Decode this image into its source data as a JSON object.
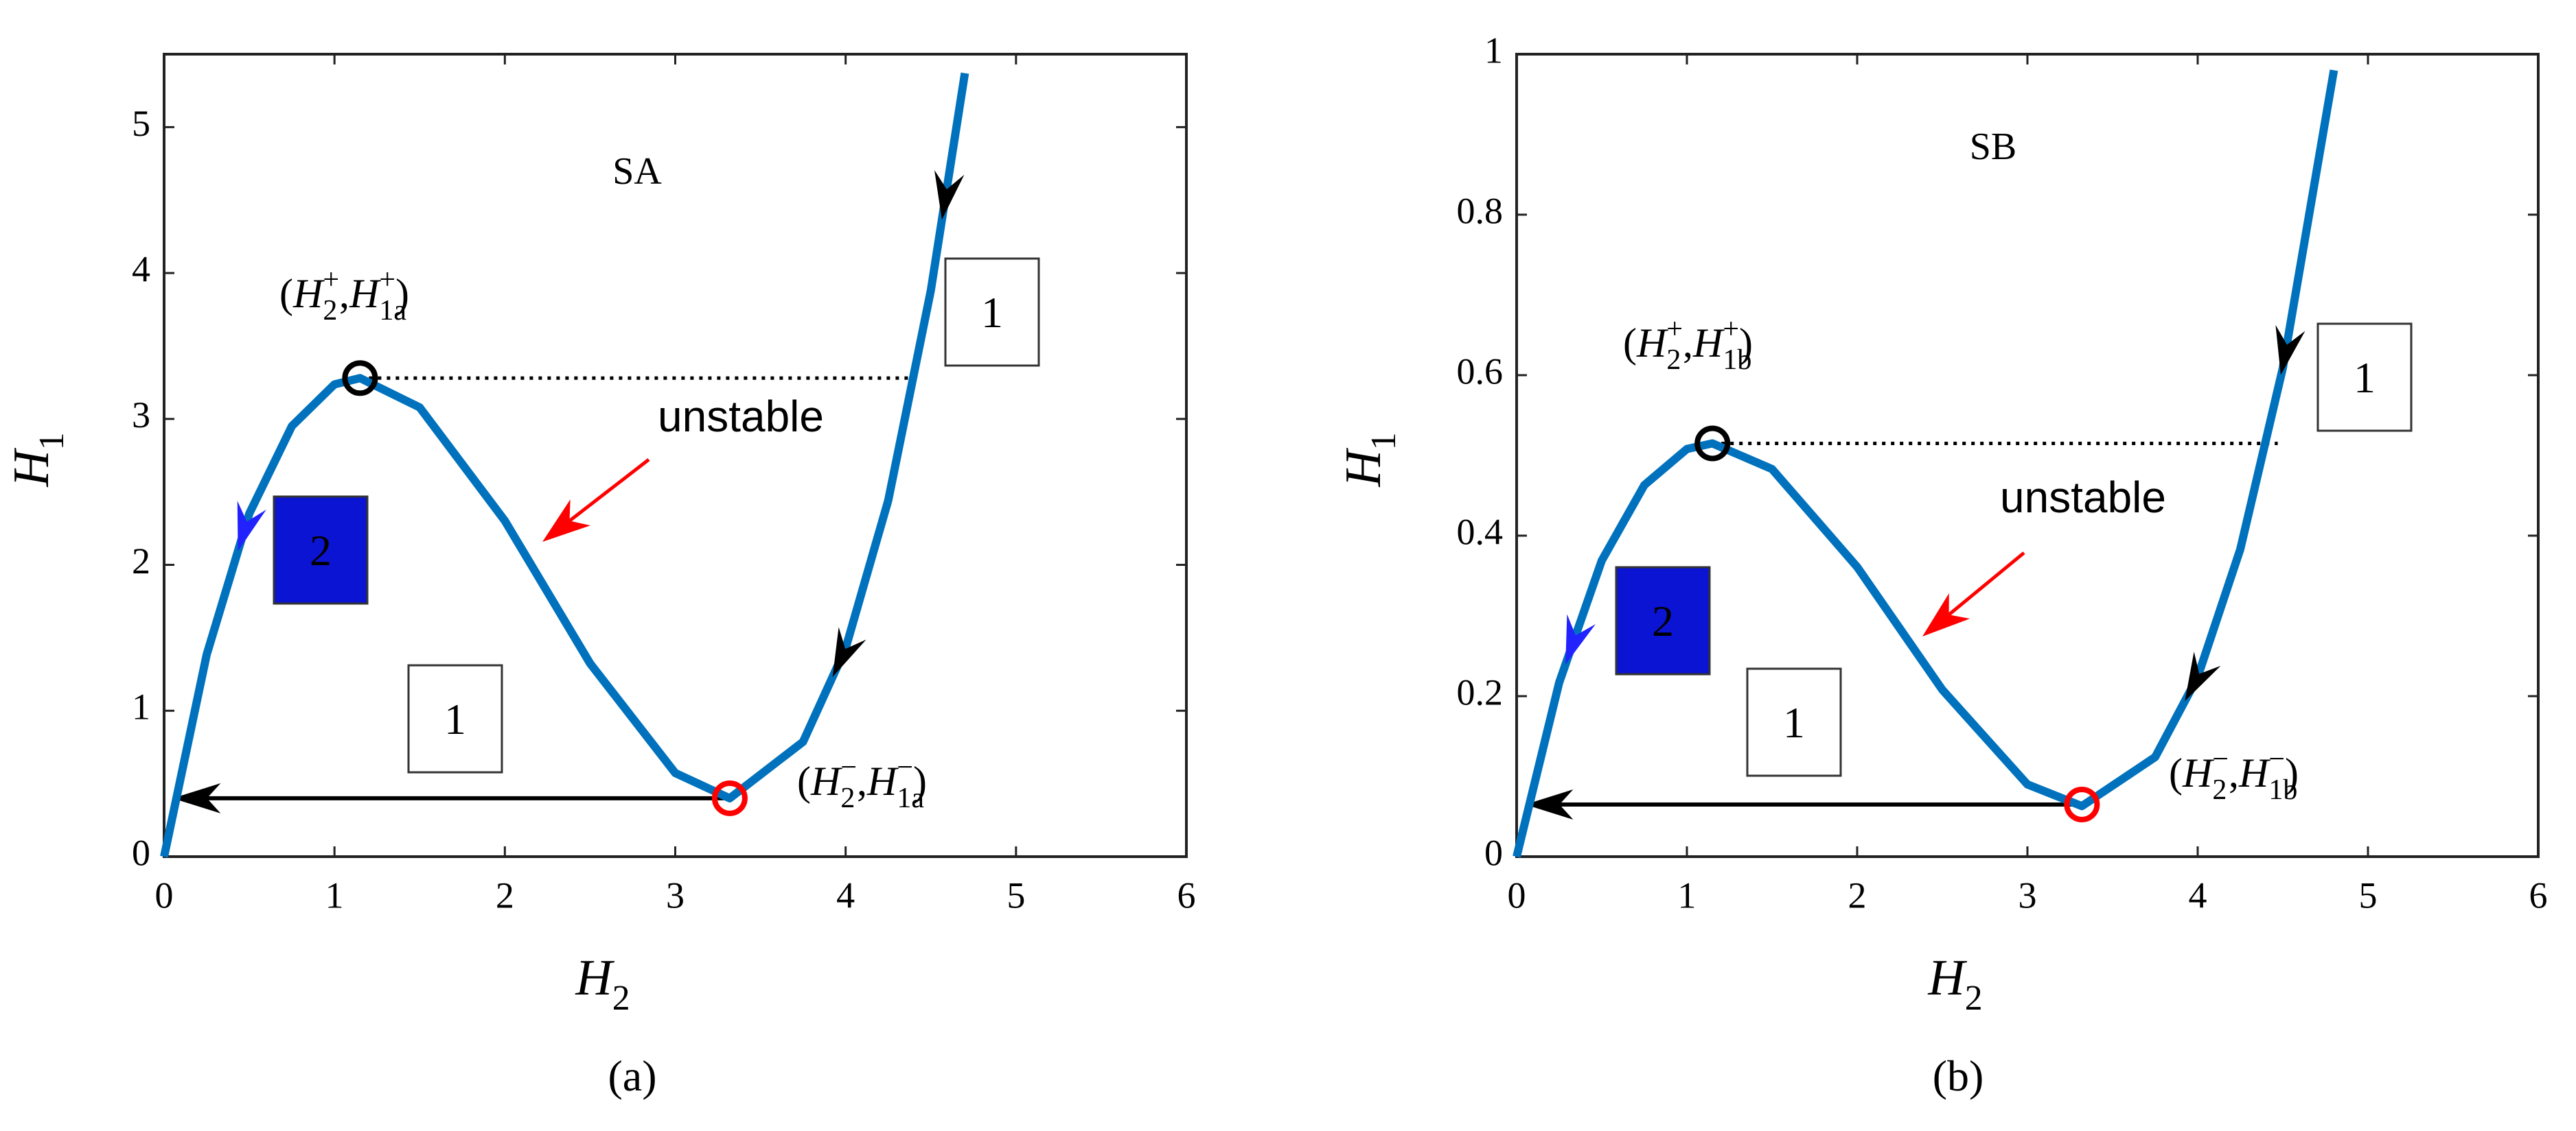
{
  "chart_data": [
    {
      "type": "line",
      "x": [
        0,
        0.25,
        0.5,
        0.75,
        1.0,
        1.15,
        1.5,
        2.0,
        2.5,
        3.0,
        3.32,
        3.75,
        4.0,
        4.25,
        4.5,
        4.7
      ],
      "series": [
        {
          "color": "#0072bd",
          "values": [
            0,
            1.385,
            2.351,
            2.951,
            3.237,
            3.28,
            3.079,
            2.302,
            1.325,
            0.573,
            0.4,
            0.787,
            1.428,
            2.441,
            3.88,
            5.37
          ]
        }
      ],
      "xlim": [
        0,
        6
      ],
      "xticks": [
        0,
        1,
        2,
        3,
        4,
        5,
        6
      ],
      "ylim": [
        0,
        5.5
      ],
      "yticks": [
        0,
        1,
        2,
        3,
        4,
        5
      ],
      "x_label": {
        "text": "H",
        "sub": "2"
      },
      "y_label": {
        "text": "H",
        "sub": "1"
      },
      "points": [
        {
          "x": 1.15,
          "y": 3.28,
          "color": "#000000"
        },
        {
          "x": 3.32,
          "y": 0.4,
          "color": "#ff0000"
        }
      ],
      "point_labels": [
        [
          {
            "text": "("
          },
          {
            "text": "H",
            "sub": "2",
            "sup": "+"
          },
          {
            "text": ","
          },
          {
            "text": "H",
            "sub": "1a",
            "sup": "+"
          },
          {
            "text": ")"
          }
        ],
        [
          {
            "text": "("
          },
          {
            "text": "H",
            "sub": "2",
            "sup": "−"
          },
          {
            "text": ","
          },
          {
            "text": "H",
            "sub": "1a",
            "sup": "−"
          },
          {
            "text": ")"
          }
        ]
      ],
      "region_label": "SA",
      "note": "unstable",
      "boxes": [
        {
          "text": "1",
          "color": "#ffffff"
        },
        {
          "text": "2",
          "color": "#0a14d2"
        },
        {
          "text": "1",
          "color": "#ffffff"
        }
      ],
      "caption": "(a)"
    },
    {
      "type": "line",
      "x": [
        0,
        0.25,
        0.5,
        0.75,
        1.0,
        1.15,
        1.5,
        2.0,
        2.5,
        3.0,
        3.32,
        3.75,
        4.0,
        4.25,
        4.5,
        4.8
      ],
      "series": [
        {
          "color": "#0072bd",
          "values": [
            0,
            0.217,
            0.369,
            0.463,
            0.508,
            0.515,
            0.483,
            0.361,
            0.208,
            0.09,
            0.063,
            0.124,
            0.224,
            0.383,
            0.609,
            0.98
          ]
        }
      ],
      "xlim": [
        0,
        6
      ],
      "xticks": [
        0,
        1,
        2,
        3,
        4,
        5,
        6
      ],
      "ylim": [
        0,
        1
      ],
      "yticks": [
        0,
        0.2,
        0.4,
        0.6,
        0.8,
        1
      ],
      "x_label": {
        "text": "H",
        "sub": "2"
      },
      "y_label": {
        "text": "H",
        "sub": "1"
      },
      "points": [
        {
          "x": 1.15,
          "y": 0.515,
          "color": "#000000"
        },
        {
          "x": 3.32,
          "y": 0.065,
          "color": "#ff0000"
        }
      ],
      "point_labels": [
        [
          {
            "text": "("
          },
          {
            "text": "H",
            "sub": "2",
            "sup": "+"
          },
          {
            "text": ","
          },
          {
            "text": "H",
            "sub": "1b",
            "sup": "+"
          },
          {
            "text": ")"
          }
        ],
        [
          {
            "text": "("
          },
          {
            "text": "H",
            "sub": "2",
            "sup": "−"
          },
          {
            "text": ","
          },
          {
            "text": "H",
            "sub": "1b",
            "sup": "−"
          },
          {
            "text": ")"
          }
        ]
      ],
      "region_label": "SB",
      "note": "unstable",
      "boxes": [
        {
          "text": "1",
          "color": "#ffffff"
        },
        {
          "text": "2",
          "color": "#0a14d2"
        },
        {
          "text": "1",
          "color": "#ffffff"
        }
      ],
      "caption": "(b)"
    }
  ]
}
